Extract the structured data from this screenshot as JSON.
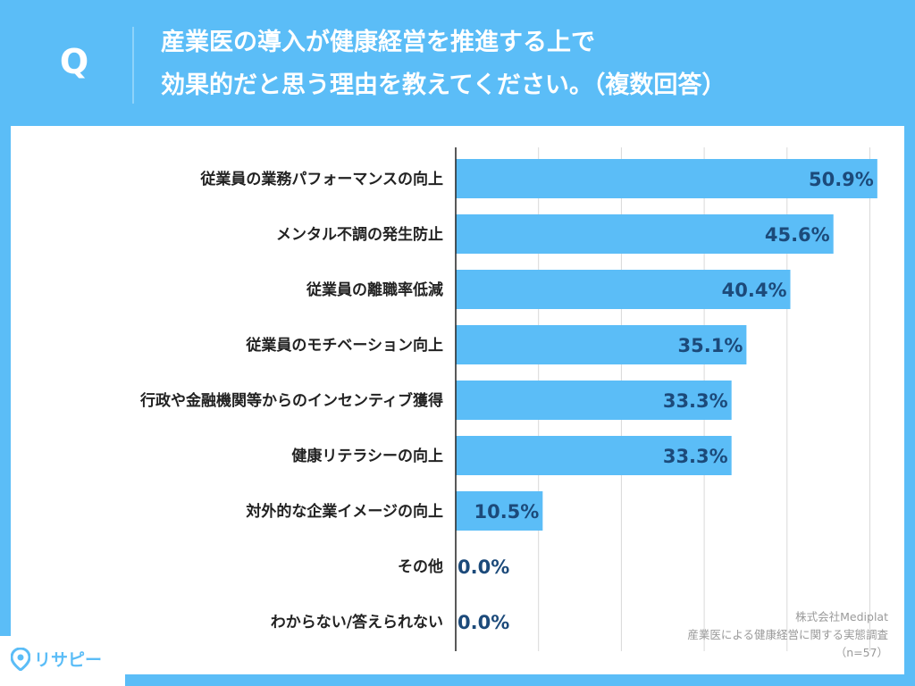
{
  "header": {
    "q_mark": "Q",
    "title_line1": "産業医の導入が健康経営を推進する上で",
    "title_line2": "効果的だと思う理由を教えてください。（複数回答）"
  },
  "source": {
    "company": "株式会社Mediplat",
    "survey": "産業医による健康経営に関する実態調査",
    "sample": "（n=57）"
  },
  "logo": {
    "text": "リサピー"
  },
  "colors": {
    "bar": "#5bbdf7",
    "background": "#5bbdf7",
    "value_text": "#1c4a7a"
  },
  "chart_data": {
    "type": "bar",
    "orientation": "horizontal",
    "title": "産業医の導入が健康経営を推進する上で効果的だと思う理由を教えてください。（複数回答）",
    "categories": [
      "従業員の業務パフォーマンスの向上",
      "メンタル不調の発生防止",
      "従業員の離職率低減",
      "従業員のモチベーション向上",
      "行政や金融機関等からのインセンティブ獲得",
      "健康リテラシーの向上",
      "対外的な企業イメージの向上",
      "その他",
      "わからない/答えられない"
    ],
    "values": [
      50.9,
      45.6,
      40.4,
      35.1,
      33.3,
      33.3,
      10.5,
      0.0,
      0.0
    ],
    "value_labels": [
      "50.9%",
      "45.6%",
      "40.4%",
      "35.1%",
      "33.3%",
      "33.3%",
      "10.5%",
      "0.0%",
      "0.0%"
    ],
    "xlim": [
      0,
      60
    ],
    "grid": true,
    "xlabel": "",
    "ylabel": ""
  }
}
